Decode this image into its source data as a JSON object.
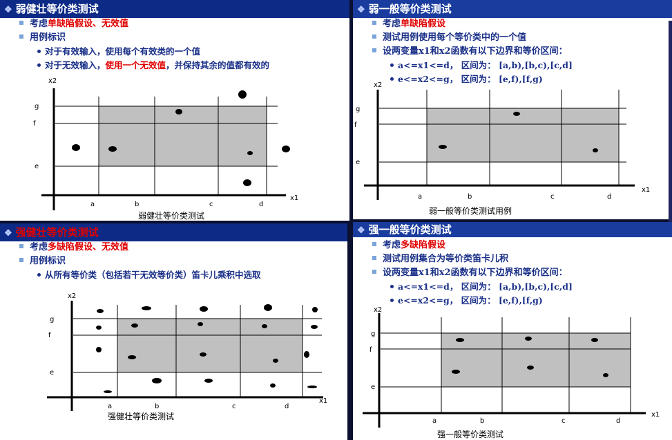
{
  "colors": {
    "title_bar": "#0d2a86",
    "emphasis": "#e00000",
    "body_text": "#1a3088",
    "region_fill": "#c0c0c0"
  },
  "panels": {
    "weak_robust": {
      "title": "弱健壮等价类测试",
      "bullets": [
        {
          "pre": "考虑",
          "red": "单缺陷假设、无效值",
          "post": ""
        },
        {
          "pre": "用例标识",
          "red": "",
          "post": ""
        }
      ],
      "subs": [
        {
          "pre": "对于有效输入，使用每个有效类的一个值",
          "red": "",
          "post": ""
        },
        {
          "pre": "对于无效输入，",
          "red": "使用一个无效值",
          "post": "，并保持其余的值都有效的"
        }
      ],
      "diagram": {
        "x_axis_label": "x1",
        "y_axis_label": "x2",
        "x_ticks": [
          "a",
          "b",
          "c",
          "d"
        ],
        "y_ticks": [
          "g",
          "f",
          "e"
        ],
        "caption": "弱健壮等价类测试"
      }
    },
    "weak_normal": {
      "title": "弱一般等价类测试",
      "bullets": [
        {
          "pre": "考虑",
          "red": "单缺陷假设",
          "post": ""
        },
        {
          "pre": "测试用例使用每个等价类中的一个值",
          "red": "",
          "post": ""
        },
        {
          "pre": "设两变量x1和x2函数有以下边界和等价区间：",
          "red": "",
          "post": ""
        }
      ],
      "subs": [
        {
          "pre": "a<=x1<=d， 区间为： [a,b),[b,c),[c,d]",
          "red": "",
          "post": ""
        },
        {
          "pre": "e<=x2<=g， 区间为： [e,f),[f,g)",
          "red": "",
          "post": ""
        }
      ],
      "diagram": {
        "x_axis_label": "x1",
        "y_axis_label": "x2",
        "x_ticks": [
          "a",
          "b",
          "c",
          "d"
        ],
        "y_ticks": [
          "g",
          "f",
          "e"
        ],
        "caption": "弱一般等价类测试用例"
      }
    },
    "strong_robust": {
      "title": "强健壮等价类测试",
      "bullets": [
        {
          "pre": "考虑",
          "red": "多缺陷假设、无效值",
          "post": ""
        },
        {
          "pre": "用例标识",
          "red": "",
          "post": ""
        }
      ],
      "subs": [
        {
          "pre": "从所有等价类（包括若干无效等价类）笛卡儿乘积中选取",
          "red": "",
          "post": ""
        }
      ],
      "diagram": {
        "x_axis_label": "x1",
        "y_axis_label": "x2",
        "x_ticks": [
          "a",
          "b",
          "c",
          "d"
        ],
        "y_ticks": [
          "g",
          "f",
          "e"
        ],
        "caption": "强健壮等价类测试"
      }
    },
    "strong_normal": {
      "title": "强一般等价类测试",
      "bullets": [
        {
          "pre": "考虑",
          "red": "多缺陷假设",
          "post": ""
        },
        {
          "pre": "测试用例集合为等价类笛卡儿积",
          "red": "",
          "post": ""
        },
        {
          "pre": "设两变量x1和x2函数有以下边界和等价区间：",
          "red": "",
          "post": ""
        }
      ],
      "subs": [
        {
          "pre": "a<=x1<=d， 区间为： [a,b),[b,c),[c,d]",
          "red": "",
          "post": ""
        },
        {
          "pre": "e<=x2<=g， 区间为： [e,f),[f,g)",
          "red": "",
          "post": ""
        }
      ],
      "diagram": {
        "x_axis_label": "x1",
        "y_axis_label": "x2",
        "x_ticks": [
          "a",
          "b",
          "c",
          "d"
        ],
        "y_ticks": [
          "g",
          "f",
          "e"
        ],
        "caption": "强一般等价类测试"
      }
    }
  }
}
